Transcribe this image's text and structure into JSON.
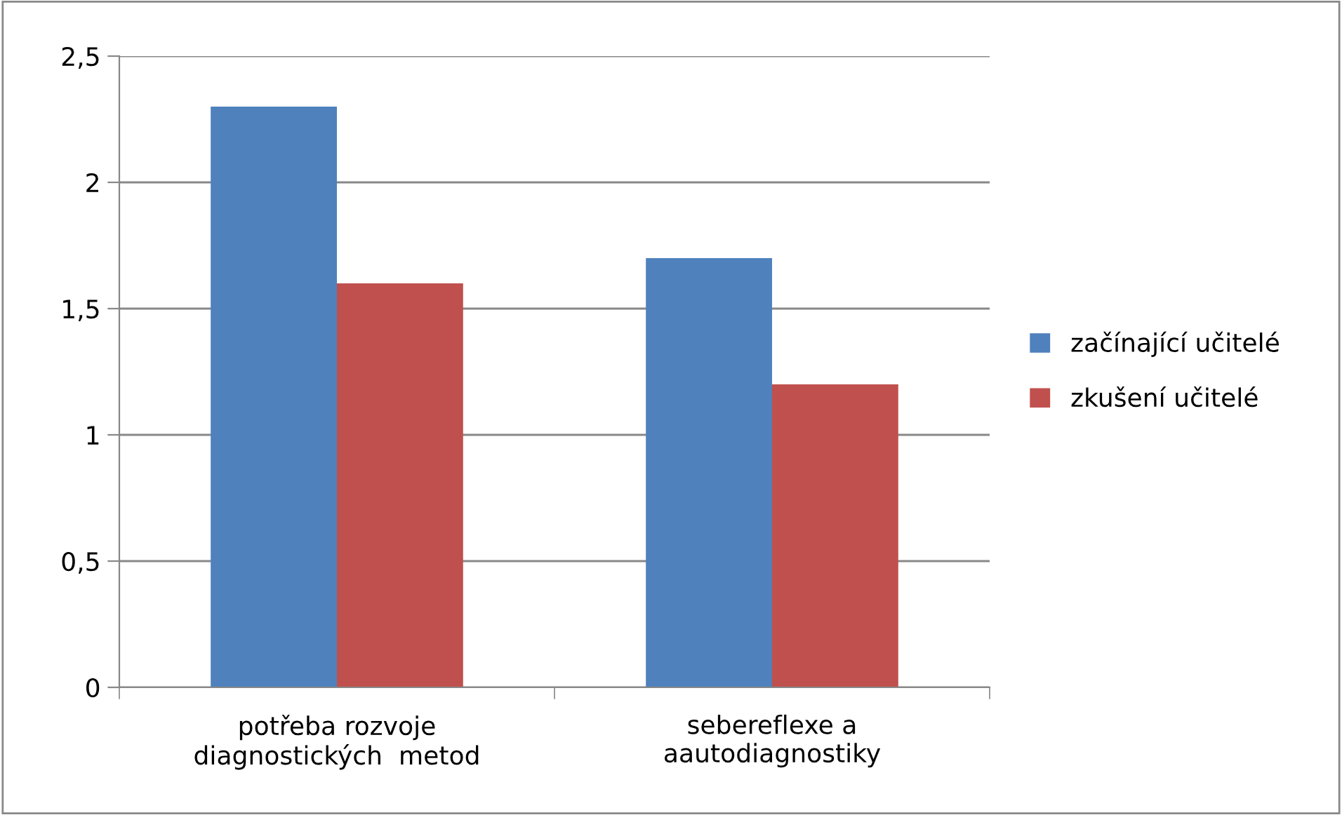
{
  "chart_data": {
    "type": "bar",
    "categories": [
      "potřeba rozvoje\ndiagnostických  metod",
      "sebereflexe a\naautodiagnostiky"
    ],
    "series": [
      {
        "name": "začínající učitelé",
        "color": "#4f81bd",
        "values": [
          2.3,
          1.7
        ]
      },
      {
        "name": "zkušení učitelé",
        "color": "#c0504d",
        "values": [
          1.6,
          1.2
        ]
      }
    ],
    "ylim": [
      0,
      2.5
    ],
    "yticks": [
      {
        "value": 0,
        "label": "0"
      },
      {
        "value": 0.5,
        "label": "0,5"
      },
      {
        "value": 1,
        "label": "1"
      },
      {
        "value": 1.5,
        "label": "1,5"
      },
      {
        "value": 2,
        "label": "2"
      },
      {
        "value": 2.5,
        "label": "2,5"
      }
    ],
    "grid": "y",
    "legend": "right"
  }
}
